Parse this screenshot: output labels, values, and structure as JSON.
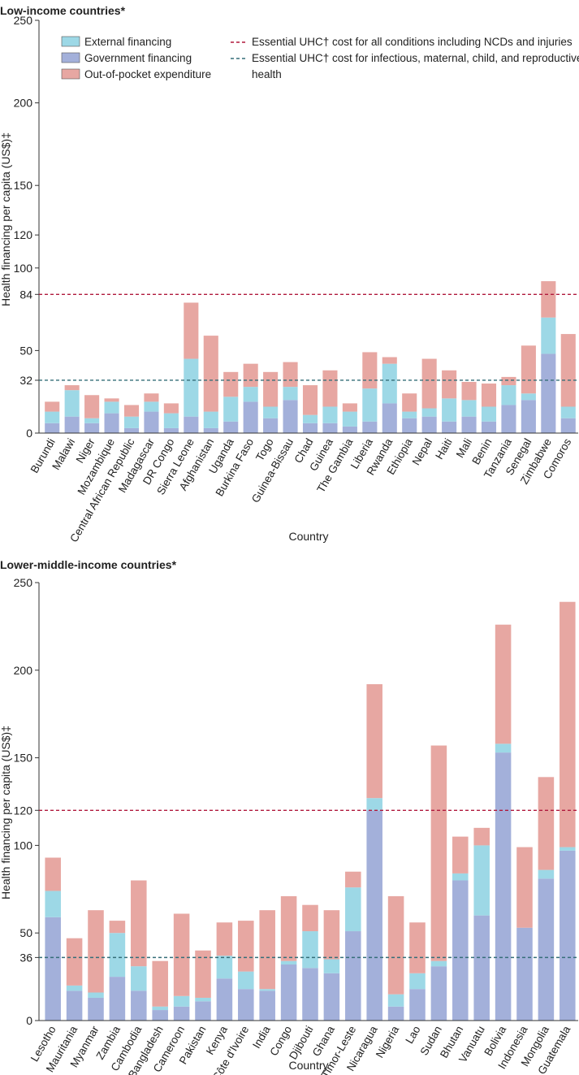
{
  "colors": {
    "external": "#9dd8e6",
    "government": "#a3b0da",
    "oop": "#e7a7a2",
    "ncd_line": "#b0193c",
    "imc_line": "#356e78",
    "axis": "#333333"
  },
  "legend": {
    "external": "External financing",
    "government": "Government financing",
    "oop": "Out-of-pocket expenditure",
    "ncd": "Essential UHC† cost for all conditions including NCDs and injuries",
    "imc_line1": "Essential UHC† cost for infectious, maternal, child, and reproductive",
    "imc_line2": "health"
  },
  "chart_data": [
    {
      "type": "bar",
      "stacked": true,
      "title": "Low-income countries*",
      "xlabel": "Country",
      "ylabel": "Health financing per capita (US$)‡",
      "ylim": [
        0,
        250
      ],
      "yticks": [
        0,
        32,
        50,
        84,
        100,
        120,
        150,
        200,
        250
      ],
      "reference_lines": [
        {
          "name": "Essential UHC† cost for all conditions including NCDs and injuries",
          "value": 84,
          "style": "ncd"
        },
        {
          "name": "Essential UHC† cost for infectious, maternal, child, and reproductive health",
          "value": 32,
          "style": "imc"
        }
      ],
      "categories": [
        "Burundi",
        "Malawi",
        "Niger",
        "Mozambique",
        "Central African Republic",
        "Madagascar",
        "DR Congo",
        "Sierra Leone",
        "Afghanistan",
        "Uganda",
        "Burkina Faso",
        "Togo",
        "Guinea-Bissau",
        "Chad",
        "Guinea",
        "The Gambia",
        "Liberia",
        "Rwanda",
        "Ethiopia",
        "Nepal",
        "Haiti",
        "Mali",
        "Benin",
        "Tanzania",
        "Senegal",
        "Zimbabwe",
        "Comoros"
      ],
      "series": [
        {
          "name": "Government financing",
          "key": "government",
          "values": [
            6,
            10,
            6,
            12,
            3,
            13,
            3,
            10,
            3,
            7,
            19,
            9,
            20,
            6,
            6,
            4,
            7,
            18,
            9,
            10,
            7,
            10,
            7,
            17,
            20,
            48,
            9
          ]
        },
        {
          "name": "External financing",
          "key": "external",
          "values": [
            7,
            16,
            3,
            7,
            7,
            6,
            9,
            35,
            10,
            15,
            9,
            7,
            8,
            5,
            10,
            9,
            20,
            24,
            4,
            5,
            14,
            10,
            9,
            12,
            4,
            22,
            7
          ]
        },
        {
          "name": "Out-of-pocket expenditure",
          "key": "oop",
          "values": [
            6,
            3,
            14,
            2,
            7,
            5,
            6,
            34,
            46,
            15,
            14,
            21,
            15,
            18,
            22,
            5,
            22,
            4,
            11,
            30,
            17,
            11,
            14,
            5,
            29,
            22,
            44
          ]
        }
      ]
    },
    {
      "type": "bar",
      "stacked": true,
      "title": "Lower-middle-income countries*",
      "xlabel": "Country",
      "ylabel": "Health financing per capita (US$)‡",
      "ylim": [
        0,
        250
      ],
      "yticks": [
        0,
        36,
        50,
        100,
        120,
        150,
        200,
        250
      ],
      "reference_lines": [
        {
          "name": "Essential UHC† cost for all conditions including NCDs and injuries",
          "value": 120,
          "style": "ncd"
        },
        {
          "name": "Essential UHC† cost for infectious, maternal, child, and reproductive health",
          "value": 36,
          "style": "imc"
        }
      ],
      "categories": [
        "Lesotho",
        "Mauritania",
        "Myanmar",
        "Zambia",
        "Cambodia",
        "Bangladesh",
        "Cameroon",
        "Pakistan",
        "Kenya",
        "Côte d'Ivoire",
        "India",
        "Congo",
        "Djibouti",
        "Ghana",
        "Timor-Leste",
        "Nicaragua",
        "Nigeria",
        "Lao",
        "Sudan",
        "Bhutan",
        "Vanuatu",
        "Bolivia",
        "Indonesia",
        "Mongolia",
        "Guatemala"
      ],
      "series": [
        {
          "name": "Government financing",
          "key": "government",
          "values": [
            59,
            17,
            13,
            25,
            17,
            6,
            8,
            11,
            24,
            18,
            17,
            32,
            30,
            27,
            51,
            120,
            8,
            18,
            31,
            80,
            60,
            153,
            53,
            81,
            97
          ]
        },
        {
          "name": "External financing",
          "key": "external",
          "values": [
            15,
            3,
            3,
            25,
            14,
            2,
            6,
            2,
            13,
            10,
            1,
            2,
            21,
            8,
            25,
            7,
            7,
            9,
            3,
            4,
            40,
            5,
            0,
            5,
            2
          ]
        },
        {
          "name": "Out-of-pocket expenditure",
          "key": "oop",
          "values": [
            19,
            27,
            47,
            7,
            49,
            26,
            47,
            27,
            19,
            29,
            45,
            37,
            15,
            28,
            9,
            65,
            56,
            29,
            123,
            21,
            10,
            68,
            46,
            53,
            140
          ]
        }
      ]
    }
  ]
}
